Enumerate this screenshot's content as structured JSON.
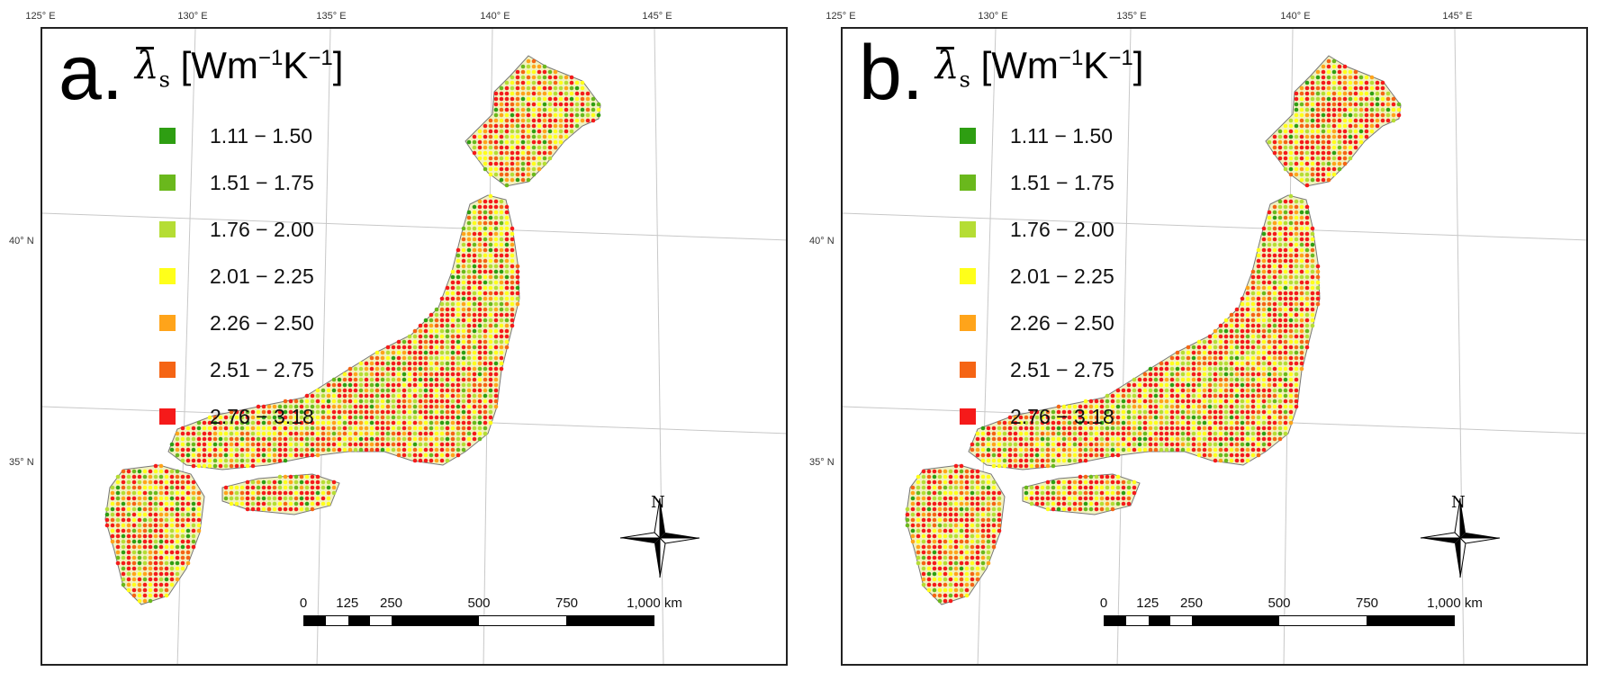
{
  "panels": [
    {
      "letter": "a.",
      "legend_title": {
        "symbol": "λ",
        "subscript": "s",
        "unit_open": " [Wm",
        "sup1": "−1",
        "unit_mid": "K",
        "sup2": "−1",
        "unit_close": "]"
      },
      "legend": [
        {
          "label": "1.11  −  1.50",
          "color": "#2e9e12"
        },
        {
          "label": "1.51  −  1.75",
          "color": "#6ab81c"
        },
        {
          "label": "1.76  −  2.00",
          "color": "#b5dd34"
        },
        {
          "label": "2.01  −  2.25",
          "color": "#ffff1a"
        },
        {
          "label": "2.26  −  2.50",
          "color": "#ffa41a"
        },
        {
          "label": "2.51  −  2.75",
          "color": "#f56414"
        },
        {
          "label": "2.76  −  3.18",
          "color": "#f51a1a"
        }
      ]
    },
    {
      "letter": "b.",
      "legend_title": {
        "symbol": "λ",
        "subscript": "s",
        "unit_open": " [Wm",
        "sup1": "−1",
        "unit_mid": "K",
        "sup2": "−1",
        "unit_close": "]"
      },
      "legend": [
        {
          "label": "1.11  −  1.50",
          "color": "#2e9e12"
        },
        {
          "label": "1.51  −  1.75",
          "color": "#6ab81c"
        },
        {
          "label": "1.76  −  2.00",
          "color": "#b5dd34"
        },
        {
          "label": "2.01  −  2.25",
          "color": "#ffff1a"
        },
        {
          "label": "2.26  −  2.50",
          "color": "#ffa41a"
        },
        {
          "label": "2.51  −  2.75",
          "color": "#f56414"
        },
        {
          "label": "2.76  −  3.18",
          "color": "#f51a1a"
        }
      ]
    }
  ],
  "graticule": {
    "longitudes": [
      "125° E",
      "130° E",
      "135° E",
      "140° E",
      "145° E"
    ],
    "latitudes": [
      "40° N",
      "35° N"
    ]
  },
  "north_arrow": {
    "label": "N"
  },
  "scale_bar": {
    "ticks": [
      "0",
      "125",
      "250",
      "500",
      "750",
      "1,000 km"
    ],
    "tick_km": [
      0,
      125,
      250,
      500,
      750,
      1000
    ]
  }
}
